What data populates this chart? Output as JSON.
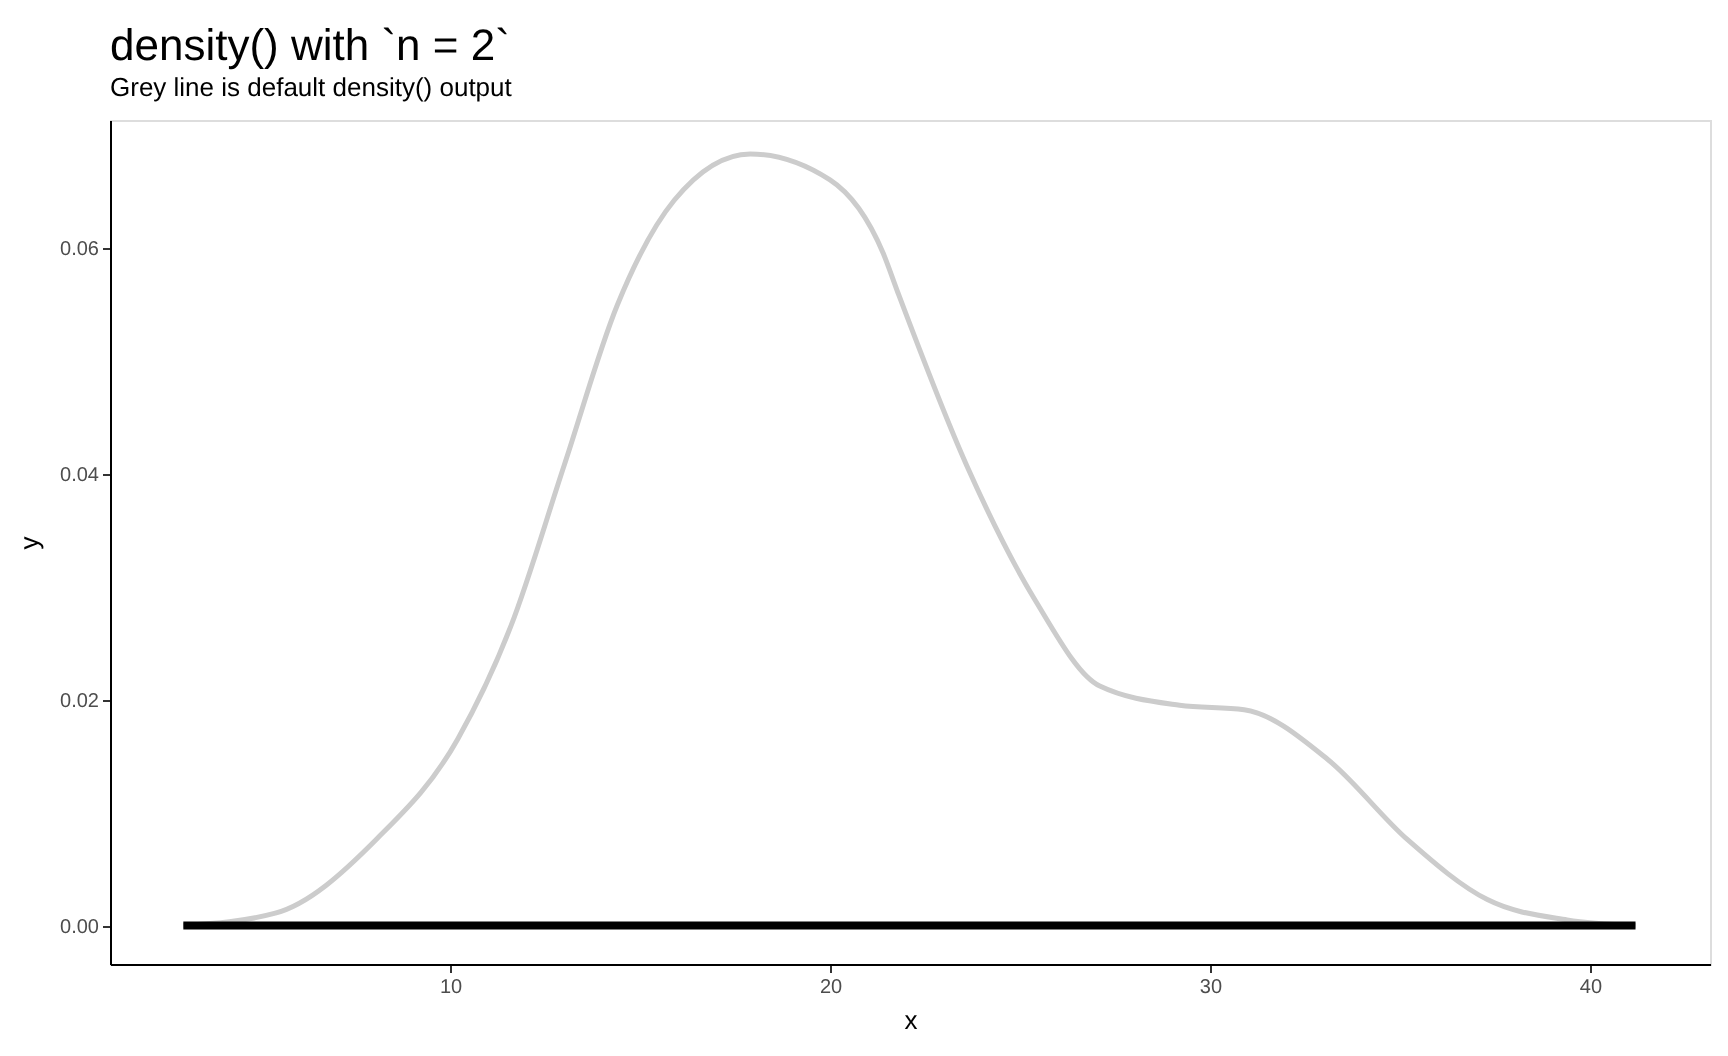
{
  "chart_data": {
    "type": "line",
    "title": "density() with `n = 2`",
    "subtitle": "Grey line is default density() output",
    "xlabel": "x",
    "ylabel": "y",
    "xlim": [
      1.05,
      43.16
    ],
    "ylim": [
      -0.0034,
      0.0713
    ],
    "xticks": [
      10,
      20,
      30,
      40
    ],
    "yticks": [
      {
        "value": 0,
        "label": "0.00"
      },
      {
        "value": 0.02,
        "label": "0.02"
      },
      {
        "value": 0.04,
        "label": "0.04"
      },
      {
        "value": 0.06,
        "label": "0.06"
      }
    ],
    "grid": false,
    "line_style": "solid",
    "marker": "none",
    "series": [
      {
        "color": "#cccccc",
        "x": [
          2.98,
          5.4,
          8.05,
          10.2,
          11.6,
          13.0,
          14.4,
          15.9,
          17.9,
          20.0,
          21.4,
          21.8,
          23.6,
          25.4,
          27.1,
          29.2,
          30.9,
          33.1,
          35.2,
          37.3,
          39.4,
          41.2
        ],
        "values": [
          0.0,
          0.0011,
          0.0076,
          0.0165,
          0.0265,
          0.0407,
          0.0549,
          0.0642,
          0.0683,
          0.066,
          0.0595,
          0.0559,
          0.0407,
          0.0288,
          0.0212,
          0.0195,
          0.0191,
          0.0147,
          0.0076,
          0.0023,
          0.0005,
          0.0
        ]
      },
      {
        "color": "#000000",
        "x": [
          2.98,
          41.2
        ],
        "values": [
          0.0,
          0.0
        ]
      }
    ]
  }
}
